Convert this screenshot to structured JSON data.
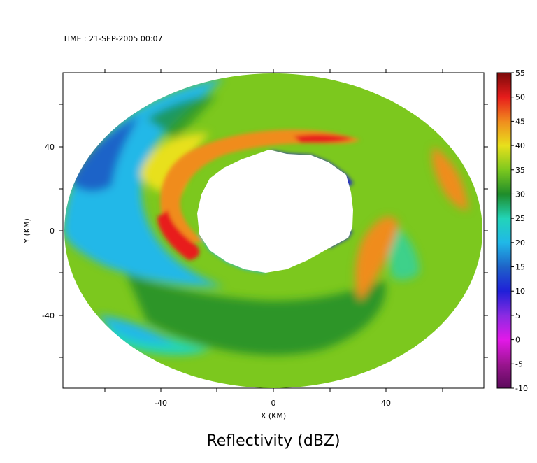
{
  "header": {
    "time_label": "TIME : 21-SEP-2005 00:07"
  },
  "chart_data": {
    "type": "heatmap",
    "title": "Reflectivity (dBZ)",
    "xlabel": "X (KM)",
    "ylabel": "Y (KM)",
    "xlim": [
      -75,
      75
    ],
    "ylim": [
      -75,
      75
    ],
    "x_ticks": [
      -40,
      0,
      40
    ],
    "y_ticks": [
      40,
      0,
      -40
    ],
    "colorbar": {
      "ticks": [
        55,
        50,
        45,
        40,
        35,
        30,
        25,
        20,
        15,
        10,
        5,
        0,
        -5,
        -10
      ],
      "colors": {
        "-10": "#5a0a5a",
        "-5": "#9b1590",
        "0": "#e319e8",
        "5": "#8a2be2",
        "10": "#1f1fd8",
        "15": "#1e63c8",
        "20": "#20b8e8",
        "25": "#22d4b8",
        "30": "#1e8c2a",
        "35": "#7cc81e",
        "40": "#e8e01c",
        "45": "#f08c1e",
        "50": "#e81c1c",
        "55": "#7a0a0a"
      }
    }
  }
}
